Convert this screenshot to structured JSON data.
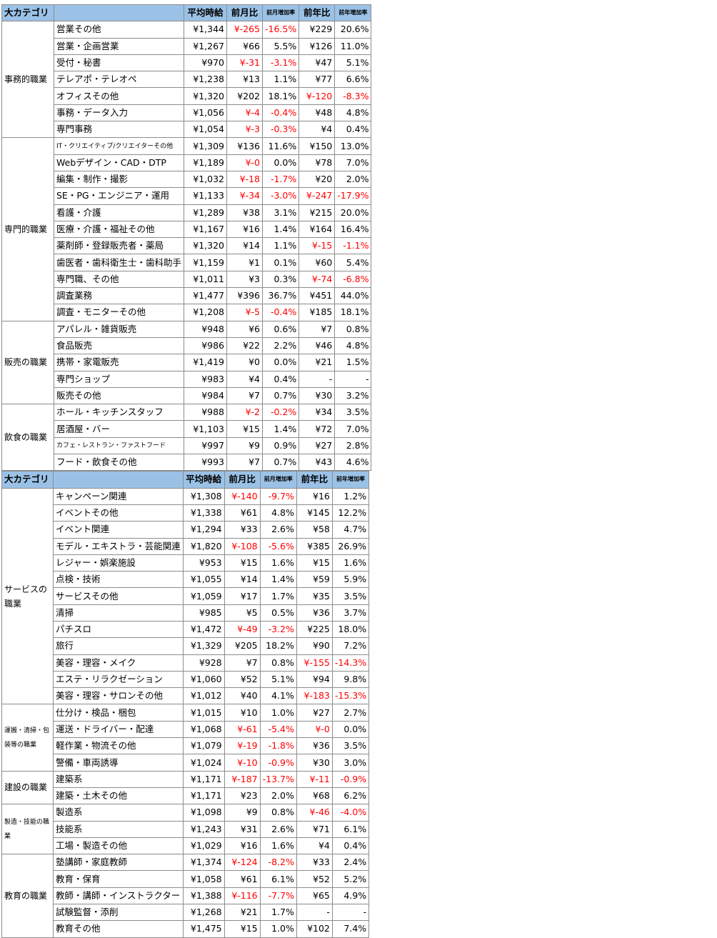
{
  "headers": {
    "category": "大カテゴリ",
    "avg_wage": "平均時給",
    "mom": "前月比",
    "mom_rate": "前月増加率",
    "yoy": "前年比",
    "yoy_rate": "前年増加率"
  },
  "colors": {
    "header_bg": "#9bc2e6",
    "negative": "#ff0000"
  },
  "left_groups": [
    {
      "category": "事務的職業",
      "rows": [
        [
          "営業その他",
          "¥1,344",
          "¥-265",
          "-16.5%",
          "¥229",
          "20.6%"
        ],
        [
          "営業・企画営業",
          "¥1,267",
          "¥66",
          "5.5%",
          "¥126",
          "11.0%"
        ],
        [
          "受付・秘書",
          "¥970",
          "¥-31",
          "-3.1%",
          "¥47",
          "5.1%"
        ],
        [
          "テレアポ・テレオペ",
          "¥1,238",
          "¥13",
          "1.1%",
          "¥77",
          "6.6%"
        ],
        [
          "オフィスその他",
          "¥1,320",
          "¥202",
          "18.1%",
          "¥-120",
          "-8.3%"
        ],
        [
          "事務・データ入力",
          "¥1,056",
          "¥-4",
          "-0.4%",
          "¥48",
          "4.8%"
        ],
        [
          "専門事務",
          "¥1,054",
          "¥-3",
          "-0.3%",
          "¥4",
          "0.4%"
        ]
      ]
    },
    {
      "category": "専門的職業",
      "rows": [
        [
          "IT・クリエイティブ/クリエイターその他",
          "¥1,309",
          "¥136",
          "11.6%",
          "¥150",
          "13.0%"
        ],
        [
          "Webデザイン・CAD・DTP",
          "¥1,189",
          "¥-0",
          "0.0%",
          "¥78",
          "7.0%"
        ],
        [
          "編集・制作・撮影",
          "¥1,032",
          "¥-18",
          "-1.7%",
          "¥20",
          "2.0%"
        ],
        [
          "SE・PG・エンジニア・運用",
          "¥1,133",
          "¥-34",
          "-3.0%",
          "¥-247",
          "-17.9%"
        ],
        [
          "看護・介護",
          "¥1,289",
          "¥38",
          "3.1%",
          "¥215",
          "20.0%"
        ],
        [
          "医療・介護・福祉その他",
          "¥1,167",
          "¥16",
          "1.4%",
          "¥164",
          "16.4%"
        ],
        [
          "薬剤師・登録販売者・薬局",
          "¥1,320",
          "¥14",
          "1.1%",
          "¥-15",
          "-1.1%"
        ],
        [
          "歯医者・歯科衛生士・歯科助手",
          "¥1,159",
          "¥1",
          "0.1%",
          "¥60",
          "5.4%"
        ],
        [
          "専門職、その他",
          "¥1,011",
          "¥3",
          "0.3%",
          "¥-74",
          "-6.8%"
        ],
        [
          "調査業務",
          "¥1,477",
          "¥396",
          "36.7%",
          "¥451",
          "44.0%"
        ],
        [
          "調査・モニターその他",
          "¥1,208",
          "¥-5",
          "-0.4%",
          "¥185",
          "18.1%"
        ]
      ]
    },
    {
      "category": "販売の職業",
      "rows": [
        [
          "アパレル・雑貨販売",
          "¥948",
          "¥6",
          "0.6%",
          "¥7",
          "0.8%"
        ],
        [
          "食品販売",
          "¥986",
          "¥22",
          "2.2%",
          "¥46",
          "4.8%"
        ],
        [
          "携帯・家電販売",
          "¥1,419",
          "¥0",
          "0.0%",
          "¥21",
          "1.5%"
        ],
        [
          "専門ショップ",
          "¥983",
          "¥4",
          "0.4%",
          "-",
          "-"
        ],
        [
          "販売その他",
          "¥984",
          "¥7",
          "0.7%",
          "¥30",
          "3.2%"
        ]
      ]
    },
    {
      "category": "飲食の職業",
      "rows": [
        [
          "ホール・キッチンスタッフ",
          "¥988",
          "¥-2",
          "-0.2%",
          "¥34",
          "3.5%"
        ],
        [
          "居酒屋・バー",
          "¥1,103",
          "¥15",
          "1.4%",
          "¥72",
          "7.0%"
        ],
        [
          "カフェ・レストラン・ファストフード",
          "¥997",
          "¥9",
          "0.9%",
          "¥27",
          "2.8%"
        ],
        [
          "フード・飲食その他",
          "¥993",
          "¥7",
          "0.7%",
          "¥43",
          "4.6%"
        ]
      ]
    }
  ],
  "right_groups": [
    {
      "category": "サービスの職業",
      "rows": [
        [
          "キャンペーン関連",
          "¥1,308",
          "¥-140",
          "-9.7%",
          "¥16",
          "1.2%"
        ],
        [
          "イベントその他",
          "¥1,338",
          "¥61",
          "4.8%",
          "¥145",
          "12.2%"
        ],
        [
          "イベント関連",
          "¥1,294",
          "¥33",
          "2.6%",
          "¥58",
          "4.7%"
        ],
        [
          "モデル・エキストラ・芸能関連",
          "¥1,820",
          "¥-108",
          "-5.6%",
          "¥385",
          "26.9%"
        ],
        [
          "レジャー・娯楽施設",
          "¥953",
          "¥15",
          "1.6%",
          "¥15",
          "1.6%"
        ],
        [
          "点検・技術",
          "¥1,055",
          "¥14",
          "1.4%",
          "¥59",
          "5.9%"
        ],
        [
          "サービスその他",
          "¥1,059",
          "¥17",
          "1.7%",
          "¥35",
          "3.5%"
        ],
        [
          "清掃",
          "¥985",
          "¥5",
          "0.5%",
          "¥36",
          "3.7%"
        ],
        [
          "パチスロ",
          "¥1,472",
          "¥-49",
          "-3.2%",
          "¥225",
          "18.0%"
        ],
        [
          "旅行",
          "¥1,329",
          "¥205",
          "18.2%",
          "¥90",
          "7.2%"
        ],
        [
          "美容・理容・メイク",
          "¥928",
          "¥7",
          "0.8%",
          "¥-155",
          "-14.3%"
        ],
        [
          "エステ・リラクゼーション",
          "¥1,060",
          "¥52",
          "5.1%",
          "¥94",
          "9.8%"
        ],
        [
          "美容・理容・サロンその他",
          "¥1,012",
          "¥40",
          "4.1%",
          "¥-183",
          "-15.3%"
        ]
      ]
    },
    {
      "category": "運搬・清掃・包装等の職業",
      "rows": [
        [
          "仕分け・検品・梱包",
          "¥1,015",
          "¥10",
          "1.0%",
          "¥27",
          "2.7%"
        ],
        [
          "運送・ドライバー・配達",
          "¥1,068",
          "¥-61",
          "-5.4%",
          "¥-0",
          "0.0%"
        ],
        [
          "軽作業・物流その他",
          "¥1,079",
          "¥-19",
          "-1.8%",
          "¥36",
          "3.5%"
        ],
        [
          "警備・車両誘導",
          "¥1,024",
          "¥-10",
          "-0.9%",
          "¥30",
          "3.0%"
        ]
      ]
    },
    {
      "category": "建設の職業",
      "rows": [
        [
          "建築系",
          "¥1,171",
          "¥-187",
          "-13.7%",
          "¥-11",
          "-0.9%"
        ],
        [
          "建築・土木その他",
          "¥1,171",
          "¥23",
          "2.0%",
          "¥68",
          "6.2%"
        ]
      ]
    },
    {
      "category": "製造・技能の職業",
      "rows": [
        [
          "製造系",
          "¥1,098",
          "¥9",
          "0.8%",
          "¥-46",
          "-4.0%"
        ],
        [
          "技能系",
          "¥1,243",
          "¥31",
          "2.6%",
          "¥71",
          "6.1%"
        ],
        [
          "工場・製造その他",
          "¥1,029",
          "¥16",
          "1.6%",
          "¥4",
          "0.4%"
        ]
      ]
    },
    {
      "category": "教育の職業",
      "rows": [
        [
          "塾講師・家庭教師",
          "¥1,374",
          "¥-124",
          "-8.2%",
          "¥33",
          "2.4%"
        ],
        [
          "教育・保育",
          "¥1,058",
          "¥61",
          "6.1%",
          "¥52",
          "5.2%"
        ],
        [
          "教師・講師・インストラクター",
          "¥1,388",
          "¥-116",
          "-7.7%",
          "¥65",
          "4.9%"
        ],
        [
          "試験監督・添削",
          "¥1,268",
          "¥21",
          "1.7%",
          "-",
          "-"
        ],
        [
          "教育その他",
          "¥1,475",
          "¥15",
          "1.0%",
          "¥102",
          "7.4%"
        ]
      ]
    }
  ]
}
